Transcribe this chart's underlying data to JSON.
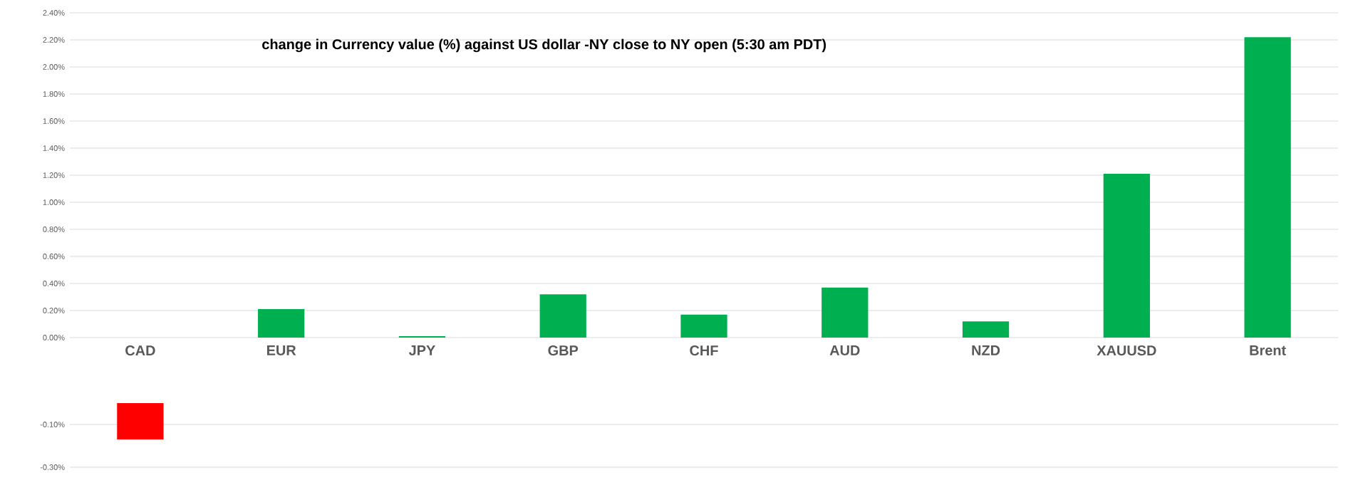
{
  "chart_data": [
    {
      "type": "bar",
      "title": "change in Currency value (%)  against US dollar -NY close to NY open (5:30 am PDT)",
      "categories": [
        "CAD",
        "EUR",
        "JPY",
        "GBP",
        "CHF",
        "AUD",
        "NZD",
        "XAUUSD",
        "Brent"
      ],
      "values": [
        null,
        0.21,
        0.01,
        0.32,
        0.17,
        0.37,
        0.12,
        1.21,
        2.22
      ],
      "color": "#00b050",
      "ylim": [
        0,
        2.4
      ],
      "yticks": [
        {
          "value": 0,
          "label": "0.00%"
        },
        {
          "value": 0.2,
          "label": "0.20%"
        },
        {
          "value": 0.4,
          "label": "0.40%"
        },
        {
          "value": 0.6,
          "label": "0.60%"
        },
        {
          "value": 0.8,
          "label": "0.80%"
        },
        {
          "value": 1.0,
          "label": "1.00%"
        },
        {
          "value": 1.2,
          "label": "1.20%"
        },
        {
          "value": 1.4,
          "label": "1.40%"
        },
        {
          "value": 1.6,
          "label": "1.60%"
        },
        {
          "value": 1.8,
          "label": "1.80%"
        },
        {
          "value": 2.0,
          "label": "2.00%"
        },
        {
          "value": 2.2,
          "label": "2.20%"
        },
        {
          "value": 2.4,
          "label": "2.40%"
        }
      ],
      "grid": "y"
    },
    {
      "type": "bar",
      "categories": [
        null,
        null,
        null,
        null,
        null,
        null,
        null,
        null,
        null
      ],
      "values": [
        -0.17,
        null,
        null,
        null,
        null,
        null,
        null,
        null,
        null
      ],
      "color": "#ff0000",
      "ylim": [
        -0.3,
        0
      ],
      "yticks": [
        {
          "value": -0.1,
          "label": "-0.10%"
        },
        {
          "value": -0.3,
          "label": "-0.30%"
        }
      ],
      "grid": "y",
      "tick_labels": "y"
    }
  ]
}
